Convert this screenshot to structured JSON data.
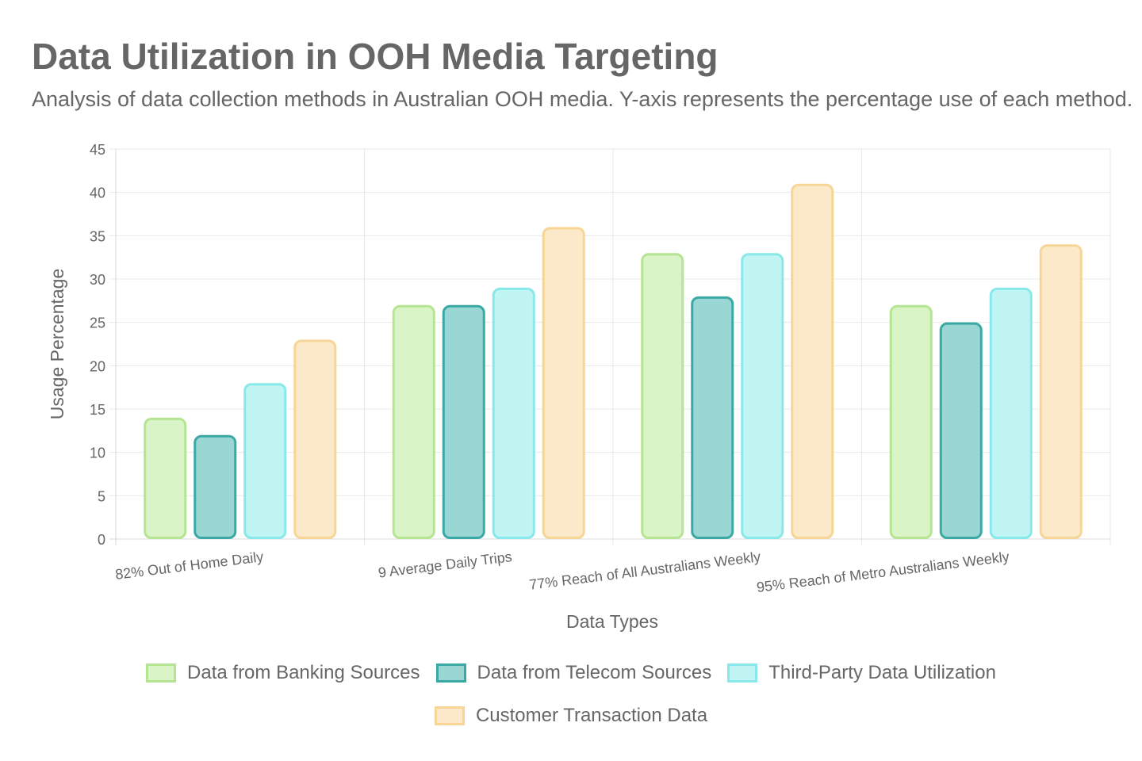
{
  "header": {
    "title": "Data Utilization in OOH Media Targeting",
    "subtitle": "Analysis of data collection methods in Australian OOH media. Y-axis represents the percentage use of each method."
  },
  "chart_data": {
    "type": "bar",
    "title": "Data Utilization in OOH Media Targeting",
    "subtitle": "Analysis of data collection methods in Australian OOH media. Y-axis represents the percentage use of each method.",
    "xlabel": "Data Types",
    "ylabel": "Usage Percentage",
    "ylim": [
      0,
      45
    ],
    "yticks": [
      "0",
      "5",
      "10",
      "15",
      "20",
      "25",
      "30",
      "35",
      "40",
      "45"
    ],
    "grid": true,
    "legend_position": "bottom",
    "categories": [
      "82% Out of Home Daily",
      "9 Average Daily Trips",
      "77% Reach of All Australians Weekly",
      "95% Reach of Metro Australians Weekly"
    ],
    "series": [
      {
        "name": "Data from Banking Sources",
        "values": [
          14,
          27,
          33,
          27
        ],
        "fill": "#d9f4c7",
        "stroke": "#b5e592"
      },
      {
        "name": "Data from Telecom Sources",
        "values": [
          12,
          27,
          28,
          25
        ],
        "fill": "#99d6d4",
        "stroke": "#3aa9a3"
      },
      {
        "name": "Third-Party Data Utilization",
        "values": [
          18,
          29,
          33,
          29
        ],
        "fill": "#c1f5f3",
        "stroke": "#88e8ea"
      },
      {
        "name": "Customer Transaction Data",
        "values": [
          23,
          36,
          41,
          34
        ],
        "fill": "#fce9c9",
        "stroke": "#f7d597"
      }
    ]
  }
}
